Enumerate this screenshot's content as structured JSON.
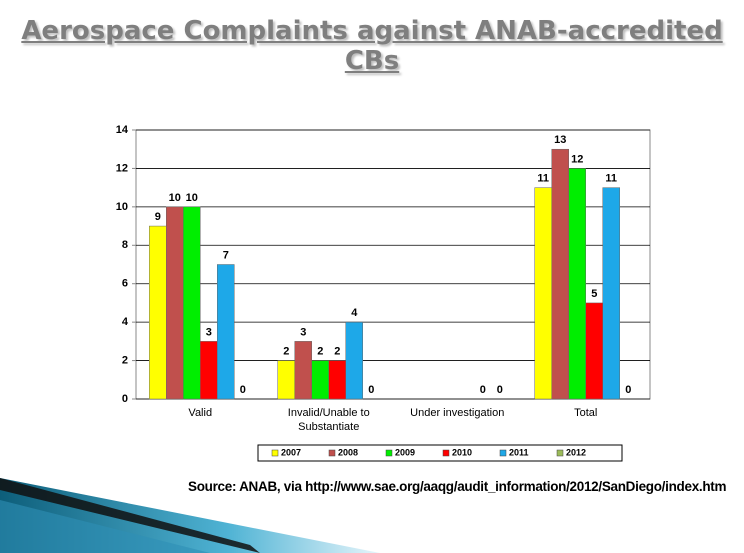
{
  "title": "Aerospace Complaints against ANAB-accredited CBs",
  "source": "Source: ANAB, via http://www.sae.org/aaqg/audit_information/2012/SanDiego/index.htm",
  "chart_data": {
    "type": "bar",
    "categories": [
      "Valid",
      "Invalid/Unable to Substantiate",
      "Under investigation",
      "Total"
    ],
    "series": [
      {
        "name": "2007",
        "color": "#ffff00",
        "values": [
          9,
          2,
          null,
          11
        ]
      },
      {
        "name": "2008",
        "color": "#c0504d",
        "values": [
          10,
          3,
          null,
          13
        ]
      },
      {
        "name": "2009",
        "color": "#00ee00",
        "values": [
          10,
          2,
          null,
          12
        ]
      },
      {
        "name": "2010",
        "color": "#ff0000",
        "values": [
          3,
          2,
          null,
          5
        ]
      },
      {
        "name": "2011",
        "color": "#1ea8e8",
        "values": [
          7,
          4,
          0,
          11
        ]
      },
      {
        "name": "2012",
        "color": "#9bbb59",
        "values": [
          0,
          0,
          0,
          0
        ]
      }
    ],
    "ylim": [
      0,
      14
    ],
    "yticks": [
      0,
      2,
      4,
      6,
      8,
      10,
      12,
      14
    ],
    "grid": true,
    "legend": "bottom"
  }
}
